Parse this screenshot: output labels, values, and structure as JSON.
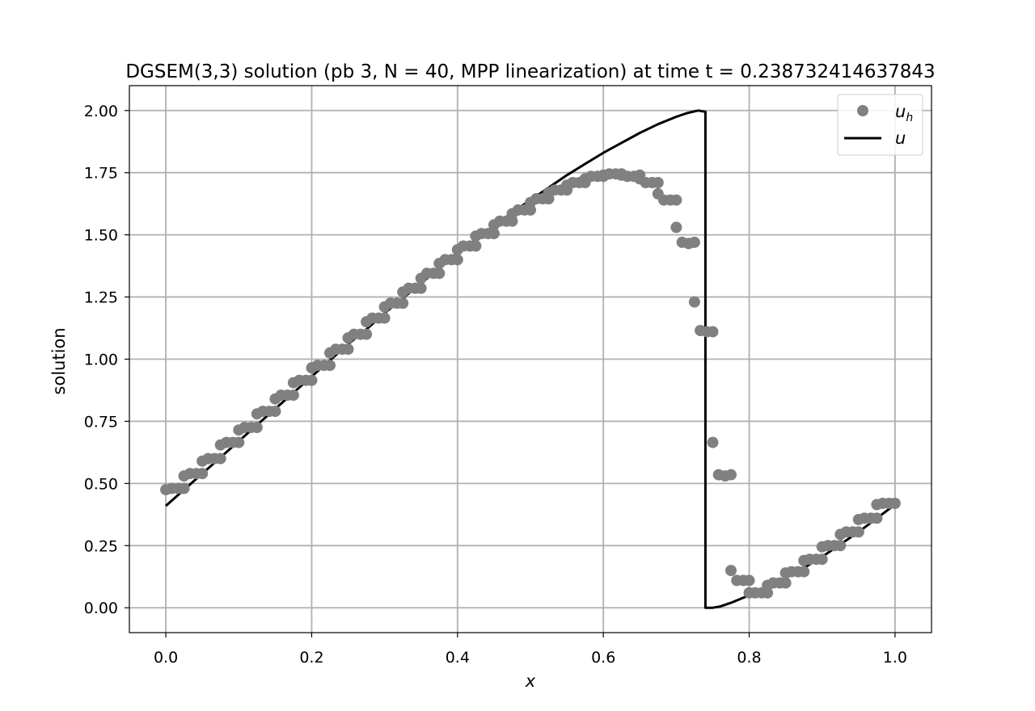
{
  "chart_data": {
    "type": "line",
    "title": "DGSEM(3,3) solution (pb 3, N = 40, MPP linearization) at time t = 0.238732414637843",
    "xlabel": "x",
    "ylabel": "solution",
    "xlim": [
      -0.05,
      1.05
    ],
    "ylim": [
      -0.1,
      2.1
    ],
    "xticks": [
      0.0,
      0.2,
      0.4,
      0.6,
      0.8,
      1.0
    ],
    "xtick_labels": [
      "0.0",
      "0.2",
      "0.4",
      "0.6",
      "0.8",
      "1.0"
    ],
    "yticks": [
      0.0,
      0.25,
      0.5,
      0.75,
      1.0,
      1.25,
      1.5,
      1.75,
      2.0
    ],
    "ytick_labels": [
      "0.00",
      "0.25",
      "0.50",
      "0.75",
      "1.00",
      "1.25",
      "1.50",
      "1.75",
      "2.00"
    ],
    "grid": true,
    "legend_position": "top-right",
    "series": [
      {
        "name": "u_h",
        "legend_main": "u",
        "legend_sub": "h",
        "style": "markers",
        "color": "#808080",
        "x": [
          0.0,
          0.008,
          0.017,
          0.025,
          0.025,
          0.033,
          0.042,
          0.05,
          0.05,
          0.058,
          0.067,
          0.075,
          0.075,
          0.083,
          0.092,
          0.1,
          0.1,
          0.108,
          0.117,
          0.125,
          0.125,
          0.133,
          0.142,
          0.15,
          0.15,
          0.158,
          0.167,
          0.175,
          0.175,
          0.183,
          0.192,
          0.2,
          0.2,
          0.208,
          0.217,
          0.225,
          0.225,
          0.233,
          0.242,
          0.25,
          0.25,
          0.258,
          0.267,
          0.275,
          0.275,
          0.283,
          0.292,
          0.3,
          0.3,
          0.308,
          0.317,
          0.325,
          0.325,
          0.333,
          0.342,
          0.35,
          0.35,
          0.358,
          0.367,
          0.375,
          0.375,
          0.383,
          0.392,
          0.4,
          0.4,
          0.408,
          0.417,
          0.425,
          0.425,
          0.433,
          0.442,
          0.45,
          0.45,
          0.458,
          0.467,
          0.475,
          0.475,
          0.483,
          0.492,
          0.5,
          0.5,
          0.508,
          0.517,
          0.525,
          0.525,
          0.533,
          0.542,
          0.55,
          0.55,
          0.558,
          0.567,
          0.575,
          0.575,
          0.583,
          0.592,
          0.6,
          0.6,
          0.608,
          0.617,
          0.625,
          0.625,
          0.633,
          0.642,
          0.65,
          0.65,
          0.658,
          0.667,
          0.675,
          0.675,
          0.683,
          0.692,
          0.7,
          0.7,
          0.708,
          0.717,
          0.725,
          0.725,
          0.733,
          0.742,
          0.75,
          0.75,
          0.758,
          0.767,
          0.775,
          0.775,
          0.783,
          0.792,
          0.8,
          0.8,
          0.808,
          0.817,
          0.825,
          0.825,
          0.833,
          0.842,
          0.85,
          0.85,
          0.858,
          0.867,
          0.875,
          0.875,
          0.883,
          0.892,
          0.9,
          0.9,
          0.908,
          0.917,
          0.925,
          0.925,
          0.933,
          0.942,
          0.95,
          0.95,
          0.958,
          0.967,
          0.975,
          0.975,
          0.983,
          0.992,
          1.0
        ],
        "y": [
          0.475,
          0.48,
          0.48,
          0.48,
          0.53,
          0.54,
          0.54,
          0.54,
          0.59,
          0.6,
          0.6,
          0.6,
          0.655,
          0.665,
          0.665,
          0.665,
          0.715,
          0.725,
          0.725,
          0.725,
          0.78,
          0.79,
          0.79,
          0.79,
          0.84,
          0.855,
          0.855,
          0.855,
          0.905,
          0.915,
          0.915,
          0.915,
          0.965,
          0.975,
          0.975,
          0.975,
          1.025,
          1.04,
          1.04,
          1.04,
          1.085,
          1.1,
          1.1,
          1.1,
          1.15,
          1.165,
          1.165,
          1.165,
          1.21,
          1.225,
          1.225,
          1.225,
          1.27,
          1.285,
          1.285,
          1.285,
          1.325,
          1.345,
          1.345,
          1.345,
          1.385,
          1.4,
          1.4,
          1.4,
          1.44,
          1.455,
          1.455,
          1.455,
          1.495,
          1.505,
          1.505,
          1.505,
          1.54,
          1.555,
          1.555,
          1.555,
          1.585,
          1.6,
          1.6,
          1.6,
          1.63,
          1.645,
          1.645,
          1.645,
          1.67,
          1.68,
          1.68,
          1.68,
          1.7,
          1.71,
          1.71,
          1.71,
          1.725,
          1.735,
          1.735,
          1.735,
          1.74,
          1.745,
          1.745,
          1.745,
          1.74,
          1.735,
          1.735,
          1.74,
          1.725,
          1.71,
          1.71,
          1.71,
          1.665,
          1.64,
          1.64,
          1.64,
          1.53,
          1.47,
          1.465,
          1.47,
          1.23,
          1.115,
          1.11,
          1.11,
          0.665,
          0.535,
          0.53,
          0.535,
          0.15,
          0.11,
          0.11,
          0.11,
          0.06,
          0.06,
          0.06,
          0.06,
          0.09,
          0.1,
          0.1,
          0.1,
          0.14,
          0.145,
          0.145,
          0.145,
          0.19,
          0.195,
          0.195,
          0.195,
          0.245,
          0.25,
          0.25,
          0.25,
          0.295,
          0.305,
          0.305,
          0.305,
          0.355,
          0.36,
          0.36,
          0.36,
          0.415,
          0.42,
          0.42,
          0.42
        ]
      },
      {
        "name": "u",
        "legend_main": "u",
        "legend_sub": "",
        "style": "line",
        "color": "#000000",
        "x": [
          0.0,
          0.025,
          0.05,
          0.075,
          0.1,
          0.125,
          0.15,
          0.175,
          0.2,
          0.225,
          0.25,
          0.275,
          0.3,
          0.325,
          0.35,
          0.375,
          0.4,
          0.425,
          0.45,
          0.475,
          0.5,
          0.525,
          0.55,
          0.575,
          0.6,
          0.625,
          0.65,
          0.675,
          0.7,
          0.715,
          0.73,
          0.74,
          0.74,
          0.75,
          0.76,
          0.775,
          0.8,
          0.825,
          0.85,
          0.875,
          0.9,
          0.925,
          0.95,
          0.975,
          1.0
        ],
        "y": [
          0.41,
          0.475,
          0.54,
          0.605,
          0.67,
          0.735,
          0.8,
          0.865,
          0.93,
          0.995,
          1.06,
          1.12,
          1.185,
          1.245,
          1.305,
          1.365,
          1.425,
          1.48,
          1.535,
          1.59,
          1.64,
          1.69,
          1.74,
          1.785,
          1.83,
          1.87,
          1.91,
          1.945,
          1.975,
          1.99,
          2.0,
          1.995,
          0.0,
          0.0,
          0.005,
          0.02,
          0.05,
          0.085,
          0.12,
          0.16,
          0.205,
          0.255,
          0.305,
          0.36,
          0.415
        ]
      }
    ]
  }
}
